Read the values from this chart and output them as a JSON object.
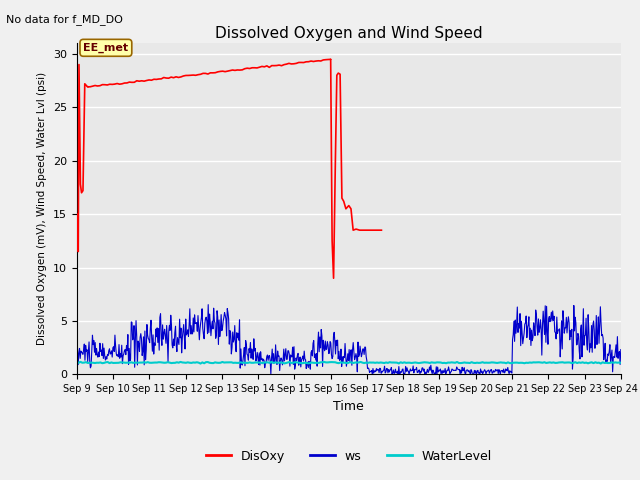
{
  "title": "Dissolved Oxygen and Wind Speed",
  "subtitle": "No data for f_MD_DO",
  "xlabel": "Time",
  "ylabel": "Dissolved Oxygen (mV), Wind Speed, Water Lvl (psi)",
  "ylim": [
    0,
    31
  ],
  "yticks": [
    0,
    5,
    10,
    15,
    20,
    25,
    30
  ],
  "xtick_labels": [
    "Sep 9",
    "Sep 10",
    "Sep 11",
    "Sep 12",
    "Sep 13",
    "Sep 14",
    "Sep 15",
    "Sep 16",
    "Sep 17",
    "Sep 18",
    "Sep 19",
    "Sep 20",
    "Sep 21",
    "Sep 22",
    "Sep 23",
    "Sep 24"
  ],
  "bg_color": "#e8e8e8",
  "grid_color": "#ffffff",
  "annotation_text": "EE_met",
  "disoxy_color": "#ff0000",
  "ws_color": "#0000cc",
  "waterlevel_color": "#00cccc",
  "legend_labels": [
    "DisOxy",
    "ws",
    "WaterLevel"
  ],
  "fig_bg": "#f0f0f0"
}
